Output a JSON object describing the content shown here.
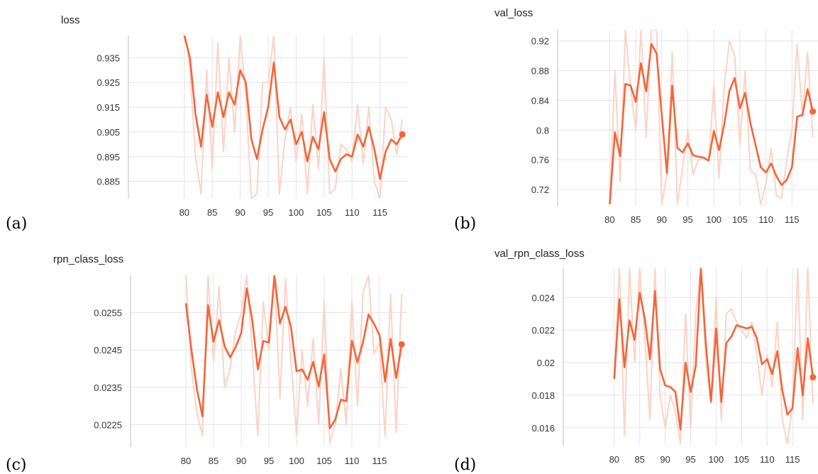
{
  "figure": {
    "accent_color": "#f4653a",
    "raw_color": "#fbd3c5",
    "grid_color": "#e3e3e3"
  },
  "chart_data": [
    {
      "type": "line",
      "panel_label": "(a)",
      "title": "loss",
      "xlabel": "",
      "ylabel": "",
      "xlim": [
        70,
        120
      ],
      "ylim": [
        0.878,
        0.944
      ],
      "xticks": [
        80,
        85,
        90,
        95,
        100,
        105,
        110,
        115
      ],
      "xtick_labels": [
        "80",
        "85",
        "90",
        "95",
        "100",
        "105",
        "110",
        "115"
      ],
      "yticks": [
        0.885,
        0.895,
        0.905,
        0.915,
        0.925,
        0.935
      ],
      "ytick_labels": [
        "0.885",
        "0.895",
        "0.905",
        "0.915",
        "0.925",
        "0.935"
      ],
      "grid": true,
      "smoothed": {
        "x": [
          80,
          81,
          82,
          83,
          84,
          85,
          86,
          87,
          88,
          89,
          90,
          91,
          92,
          93,
          94,
          95,
          96,
          97,
          98,
          99,
          100,
          101,
          102,
          103,
          104,
          105,
          106,
          107,
          108,
          109,
          110,
          111,
          112,
          113,
          114,
          115,
          116,
          117,
          118,
          119
        ],
        "y": [
          0.944,
          0.935,
          0.912,
          0.899,
          0.92,
          0.907,
          0.921,
          0.911,
          0.921,
          0.916,
          0.93,
          0.925,
          0.902,
          0.894,
          0.906,
          0.915,
          0.933,
          0.911,
          0.906,
          0.91,
          0.9,
          0.905,
          0.893,
          0.903,
          0.898,
          0.913,
          0.894,
          0.889,
          0.894,
          0.896,
          0.895,
          0.904,
          0.899,
          0.907,
          0.898,
          0.886,
          0.897,
          0.902,
          0.9,
          0.904
        ]
      },
      "raw": {
        "x": [
          80,
          81,
          82,
          83,
          84,
          85,
          86,
          87,
          88,
          89,
          90,
          91,
          92,
          93,
          94,
          95,
          96,
          97,
          98,
          99,
          100,
          101,
          102,
          103,
          104,
          105,
          106,
          107,
          108,
          109,
          110,
          111,
          112,
          113,
          114,
          115,
          116,
          117,
          118,
          119
        ],
        "y": [
          0.948,
          0.93,
          0.895,
          0.88,
          0.93,
          0.89,
          0.941,
          0.897,
          0.935,
          0.905,
          0.944,
          0.92,
          0.878,
          0.88,
          0.925,
          0.925,
          0.944,
          0.88,
          0.902,
          0.915,
          0.893,
          0.912,
          0.88,
          0.916,
          0.89,
          0.935,
          0.88,
          0.882,
          0.9,
          0.898,
          0.893,
          0.916,
          0.892,
          0.915,
          0.885,
          0.878,
          0.915,
          0.91,
          0.896,
          0.91
        ]
      },
      "last_point": {
        "x": 119,
        "y": 0.904
      }
    },
    {
      "type": "line",
      "panel_label": "(b)",
      "title": "val_loss",
      "xlabel": "",
      "ylabel": "",
      "xlim": [
        70,
        120
      ],
      "ylim": [
        0.698,
        0.935
      ],
      "xticks": [
        80,
        85,
        90,
        95,
        100,
        105,
        110,
        115
      ],
      "xtick_labels": [
        "80",
        "85",
        "90",
        "95",
        "100",
        "105",
        "110",
        "115"
      ],
      "yticks": [
        0.72,
        0.76,
        0.8,
        0.84,
        0.88,
        0.92
      ],
      "ytick_labels": [
        "0.72",
        "0.76",
        "0.8",
        "0.84",
        "0.88",
        "0.92"
      ],
      "grid": true,
      "smoothed": {
        "x": [
          80,
          81,
          82,
          83,
          84,
          85,
          86,
          87,
          88,
          89,
          90,
          91,
          92,
          93,
          94,
          95,
          96,
          97,
          98,
          99,
          100,
          101,
          102,
          103,
          104,
          105,
          106,
          107,
          108,
          109,
          110,
          111,
          112,
          113,
          114,
          115,
          116,
          117,
          118,
          119
        ],
        "y": [
          0.7,
          0.797,
          0.765,
          0.862,
          0.86,
          0.838,
          0.89,
          0.852,
          0.916,
          0.903,
          0.82,
          0.742,
          0.86,
          0.776,
          0.77,
          0.782,
          0.766,
          0.764,
          0.763,
          0.759,
          0.799,
          0.773,
          0.808,
          0.853,
          0.87,
          0.829,
          0.85,
          0.81,
          0.78,
          0.75,
          0.743,
          0.755,
          0.738,
          0.726,
          0.733,
          0.75,
          0.818,
          0.82,
          0.855,
          0.825
        ]
      },
      "raw": {
        "x": [
          80,
          81,
          82,
          83,
          84,
          85,
          86,
          87,
          88,
          89,
          90,
          91,
          92,
          93,
          94,
          95,
          96,
          97,
          98,
          99,
          100,
          101,
          102,
          103,
          104,
          105,
          106,
          107,
          108,
          109,
          110,
          111,
          112,
          113,
          114,
          115,
          116,
          117,
          118,
          119
        ],
        "y": [
          0.7,
          0.88,
          0.73,
          0.935,
          0.858,
          0.8,
          0.935,
          0.79,
          0.935,
          0.935,
          0.7,
          0.74,
          0.905,
          0.7,
          0.75,
          0.8,
          0.74,
          0.76,
          0.762,
          0.758,
          0.86,
          0.735,
          0.86,
          0.92,
          0.9,
          0.78,
          0.88,
          0.745,
          0.74,
          0.7,
          0.728,
          0.775,
          0.712,
          0.708,
          0.76,
          0.8,
          0.915,
          0.82,
          0.905,
          0.79
        ]
      },
      "last_point": {
        "x": 119,
        "y": 0.825
      }
    },
    {
      "type": "line",
      "panel_label": "(c)",
      "title": "rpn_class_loss",
      "xlabel": "",
      "ylabel": "",
      "xlim": [
        70,
        120
      ],
      "ylim": [
        0.0219,
        0.0265
      ],
      "xticks": [
        80,
        85,
        90,
        95,
        100,
        105,
        110,
        115
      ],
      "xtick_labels": [
        "80",
        "85",
        "90",
        "95",
        "100",
        "105",
        "110",
        "115"
      ],
      "yticks": [
        0.0225,
        0.0235,
        0.0245,
        0.0255
      ],
      "ytick_labels": [
        "0.0225",
        "0.0235",
        "0.0245",
        "0.0255"
      ],
      "grid": true,
      "smoothed": {
        "x": [
          80,
          81,
          82,
          83,
          84,
          85,
          86,
          87,
          88,
          89,
          90,
          91,
          92,
          93,
          94,
          95,
          96,
          97,
          98,
          99,
          100,
          101,
          102,
          103,
          104,
          105,
          106,
          107,
          108,
          109,
          110,
          111,
          112,
          113,
          114,
          115,
          116,
          117,
          118,
          119
        ],
        "y": [
          0.02575,
          0.0245,
          0.02345,
          0.02272,
          0.0257,
          0.02472,
          0.0253,
          0.0246,
          0.0243,
          0.02458,
          0.02495,
          0.02615,
          0.0253,
          0.02398,
          0.02474,
          0.0247,
          0.0265,
          0.02521,
          0.02566,
          0.02511,
          0.02393,
          0.02398,
          0.0237,
          0.02418,
          0.02352,
          0.02438,
          0.0224,
          0.02264,
          0.02317,
          0.02313,
          0.02475,
          0.02417,
          0.0247,
          0.02545,
          0.0252,
          0.0249,
          0.02365,
          0.0248,
          0.02375,
          0.02465
        ]
      },
      "raw": {
        "x": [
          80,
          81,
          82,
          83,
          84,
          85,
          86,
          87,
          88,
          89,
          90,
          91,
          92,
          93,
          94,
          95,
          96,
          97,
          98,
          99,
          100,
          101,
          102,
          103,
          104,
          105,
          106,
          107,
          108,
          109,
          110,
          111,
          112,
          113,
          114,
          115,
          116,
          117,
          118,
          119
        ],
        "y": [
          0.0265,
          0.024,
          0.0228,
          0.0222,
          0.0265,
          0.0242,
          0.0262,
          0.0235,
          0.024,
          0.025,
          0.0255,
          0.0265,
          0.0245,
          0.0222,
          0.0258,
          0.0245,
          0.0265,
          0.0232,
          0.0264,
          0.0242,
          0.0222,
          0.0245,
          0.023,
          0.0248,
          0.0225,
          0.0258,
          0.022,
          0.0225,
          0.024,
          0.0225,
          0.0258,
          0.023,
          0.026,
          0.0265,
          0.0244,
          0.0247,
          0.0222,
          0.026,
          0.0223,
          0.026
        ]
      },
      "last_point": {
        "x": 119,
        "y": 0.02465
      }
    },
    {
      "type": "line",
      "panel_label": "(d)",
      "title": "val_rpn_class_loss",
      "xlabel": "",
      "ylabel": "",
      "xlim": [
        70,
        120
      ],
      "ylim": [
        0.0149,
        0.0258
      ],
      "xticks": [
        80,
        85,
        90,
        95,
        100,
        105,
        110,
        115
      ],
      "xtick_labels": [
        "80",
        "85",
        "90",
        "95",
        "100",
        "105",
        "110",
        "115"
      ],
      "yticks": [
        0.016,
        0.018,
        0.02,
        0.022,
        0.024
      ],
      "ytick_labels": [
        "0.016",
        "0.018",
        "0.02",
        "0.022",
        "0.024"
      ],
      "grid": true,
      "smoothed": {
        "x": [
          80,
          81,
          82,
          83,
          84,
          85,
          86,
          87,
          88,
          89,
          90,
          91,
          92,
          93,
          94,
          95,
          96,
          97,
          98,
          99,
          100,
          101,
          102,
          103,
          104,
          105,
          106,
          107,
          108,
          109,
          110,
          111,
          112,
          113,
          114,
          115,
          116,
          117,
          118,
          119
        ],
        "y": [
          0.019,
          0.0239,
          0.0197,
          0.0226,
          0.0214,
          0.0243,
          0.0227,
          0.0202,
          0.0244,
          0.0196,
          0.0186,
          0.0185,
          0.0182,
          0.0159,
          0.02,
          0.0182,
          0.0198,
          0.0258,
          0.0211,
          0.0176,
          0.0221,
          0.0176,
          0.0212,
          0.0216,
          0.0223,
          0.0222,
          0.0221,
          0.0222,
          0.0215,
          0.0199,
          0.0202,
          0.0193,
          0.0207,
          0.0183,
          0.0168,
          0.0172,
          0.0209,
          0.018,
          0.0215,
          0.0191
        ]
      },
      "raw": {
        "x": [
          80,
          81,
          82,
          83,
          84,
          85,
          86,
          87,
          88,
          89,
          90,
          91,
          92,
          93,
          94,
          95,
          96,
          97,
          98,
          99,
          100,
          101,
          102,
          103,
          104,
          105,
          106,
          107,
          108,
          109,
          110,
          111,
          112,
          113,
          114,
          115,
          116,
          117,
          118,
          119
        ],
        "y": [
          0.019,
          0.0258,
          0.0155,
          0.0258,
          0.02,
          0.0258,
          0.0215,
          0.0165,
          0.0258,
          0.018,
          0.016,
          0.018,
          0.017,
          0.015,
          0.023,
          0.016,
          0.023,
          0.0258,
          0.02,
          0.0175,
          0.024,
          0.0165,
          0.023,
          0.0233,
          0.0225,
          0.022,
          0.0215,
          0.0225,
          0.0205,
          0.018,
          0.0205,
          0.0185,
          0.0225,
          0.0165,
          0.015,
          0.0175,
          0.0258,
          0.0165,
          0.0258,
          0.0175
        ]
      },
      "last_point": {
        "x": 119,
        "y": 0.0191
      }
    }
  ]
}
